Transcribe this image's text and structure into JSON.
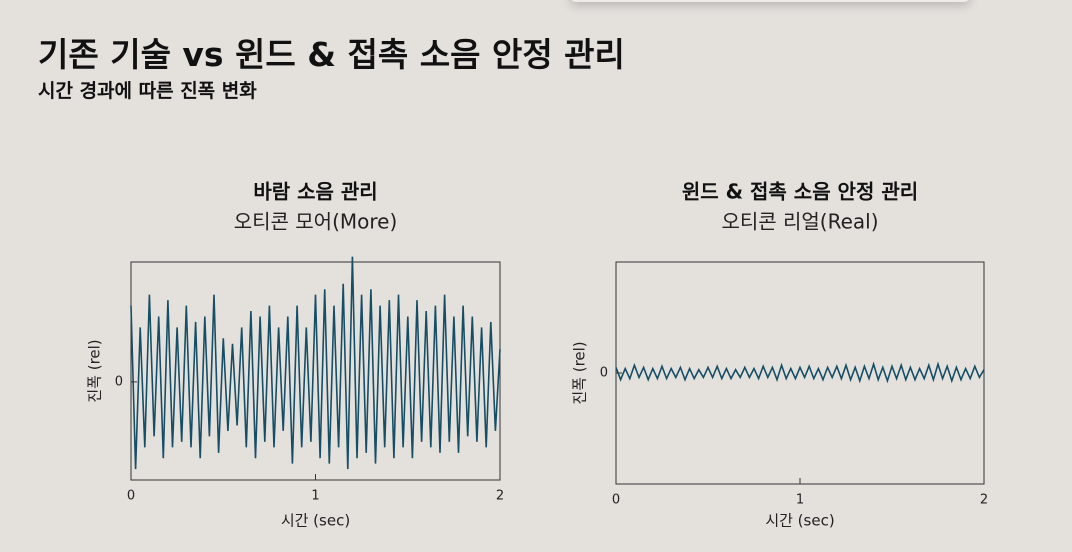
{
  "title": "기존 기술 vs 윈드 & 접촉 소음 안정 관리",
  "subtitle": "시간 경과에 따른 진폭 변화",
  "chart_data": [
    {
      "type": "line",
      "title": "바람 소음 관리",
      "subtitle": "오티콘 모어(More)",
      "xlabel": "시간 (sec)",
      "ylabel": "진폭 (rel)",
      "x": [
        0,
        0.025,
        0.05,
        0.075,
        0.1,
        0.125,
        0.15,
        0.175,
        0.2,
        0.225,
        0.25,
        0.275,
        0.3,
        0.325,
        0.35,
        0.375,
        0.4,
        0.425,
        0.45,
        0.475,
        0.5,
        0.525,
        0.55,
        0.575,
        0.6,
        0.625,
        0.65,
        0.675,
        0.7,
        0.725,
        0.75,
        0.775,
        0.8,
        0.825,
        0.85,
        0.875,
        0.9,
        0.925,
        0.95,
        0.975,
        1,
        1.025,
        1.05,
        1.075,
        1.1,
        1.125,
        1.15,
        1.175,
        1.2,
        1.225,
        1.25,
        1.275,
        1.3,
        1.325,
        1.35,
        1.375,
        1.4,
        1.425,
        1.45,
        1.475,
        1.5,
        1.525,
        1.55,
        1.575,
        1.6,
        1.625,
        1.65,
        1.675,
        1.7,
        1.725,
        1.75,
        1.775,
        1.8,
        1.825,
        1.85,
        1.875,
        1.9,
        1.925,
        1.95,
        1.975,
        2
      ],
      "series": [
        {
          "color": "#164e66",
          "values": [
            0.7,
            -0.8,
            0.5,
            -0.6,
            0.8,
            -0.5,
            0.6,
            -0.7,
            0.75,
            -0.6,
            0.5,
            -0.55,
            0.7,
            -0.6,
            0.55,
            -0.7,
            0.6,
            -0.5,
            0.8,
            -0.65,
            0.4,
            -0.45,
            0.35,
            -0.4,
            0.5,
            -0.6,
            0.65,
            -0.7,
            0.6,
            -0.55,
            0.7,
            -0.6,
            0.5,
            -0.45,
            0.6,
            -0.75,
            0.7,
            -0.6,
            0.5,
            -0.55,
            0.8,
            -0.7,
            0.85,
            -0.75,
            0.7,
            -0.6,
            0.9,
            -0.8,
            1.15,
            -0.7,
            0.8,
            -0.65,
            0.85,
            -0.75,
            0.7,
            -0.6,
            0.75,
            -0.7,
            0.8,
            -0.6,
            0.6,
            -0.7,
            0.75,
            -0.55,
            0.65,
            -0.6,
            0.7,
            -0.65,
            0.8,
            -0.55,
            0.6,
            -0.65,
            0.7,
            -0.5,
            0.6,
            -0.55,
            0.5,
            -0.6,
            0.55,
            -0.45,
            0.3
          ]
        }
      ],
      "xlim": [
        0,
        2
      ],
      "xticks": [
        0,
        1,
        2
      ],
      "ylim": [
        -0.9,
        1.1
      ],
      "yticks": [
        0
      ]
    },
    {
      "type": "line",
      "title": "윈드 & 접촉 소음 안정 관리",
      "subtitle": "오티콘 리얼(Real)",
      "xlabel": "시간 (sec)",
      "ylabel": "진폭 (rel)",
      "x": [
        0,
        0.025,
        0.05,
        0.075,
        0.1,
        0.125,
        0.15,
        0.175,
        0.2,
        0.225,
        0.25,
        0.275,
        0.3,
        0.325,
        0.35,
        0.375,
        0.4,
        0.425,
        0.45,
        0.475,
        0.5,
        0.525,
        0.55,
        0.575,
        0.6,
        0.625,
        0.65,
        0.675,
        0.7,
        0.725,
        0.75,
        0.775,
        0.8,
        0.825,
        0.85,
        0.875,
        0.9,
        0.925,
        0.95,
        0.975,
        1,
        1.025,
        1.05,
        1.075,
        1.1,
        1.125,
        1.15,
        1.175,
        1.2,
        1.225,
        1.25,
        1.275,
        1.3,
        1.325,
        1.35,
        1.375,
        1.4,
        1.425,
        1.45,
        1.475,
        1.5,
        1.525,
        1.55,
        1.575,
        1.6,
        1.625,
        1.65,
        1.675,
        1.7,
        1.725,
        1.75,
        1.775,
        1.8,
        1.825,
        1.85,
        1.875,
        1.9,
        1.925,
        1.95,
        1.975,
        2
      ],
      "series": [
        {
          "color": "#164e66",
          "values": [
            0.05,
            -0.06,
            0.04,
            -0.05,
            0.07,
            -0.04,
            0.05,
            -0.06,
            0.04,
            -0.05,
            0.06,
            -0.05,
            0.04,
            -0.04,
            0.05,
            -0.06,
            0.04,
            -0.05,
            0.03,
            -0.04,
            0.05,
            -0.04,
            0.06,
            -0.05,
            0.04,
            -0.05,
            0.03,
            -0.04,
            0.05,
            -0.04,
            0.04,
            -0.05,
            0.06,
            -0.04,
            0.05,
            -0.06,
            0.07,
            -0.05,
            0.04,
            -0.05,
            0.05,
            -0.04,
            0.06,
            -0.05,
            0.04,
            -0.06,
            0.05,
            -0.04,
            0.06,
            -0.05,
            0.07,
            -0.06,
            0.05,
            -0.07,
            0.06,
            -0.05,
            0.08,
            -0.06,
            0.05,
            -0.07,
            0.06,
            -0.05,
            0.07,
            -0.06,
            0.05,
            -0.06,
            0.04,
            -0.05,
            0.07,
            -0.06,
            0.08,
            -0.05,
            0.06,
            -0.07,
            0.05,
            -0.06,
            0.04,
            -0.05,
            0.06,
            -0.04,
            0.03
          ]
        }
      ],
      "xlim": [
        0,
        2
      ],
      "xticks": [
        0,
        1,
        2
      ],
      "ylim": [
        -1,
        1
      ],
      "yticks": [
        0
      ]
    }
  ]
}
